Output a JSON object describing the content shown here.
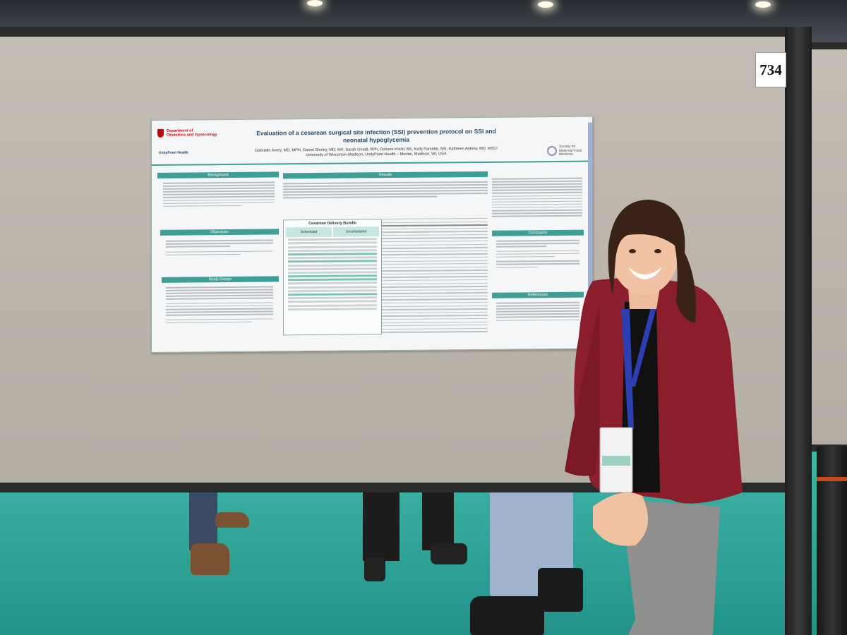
{
  "scene": {
    "description": "Person standing beside a research poster at a conference booth"
  },
  "booth": {
    "number": "734"
  },
  "poster": {
    "title_line1": "Evaluation of a cesarean surgical site infection (SSI) prevention protocol on SSI and",
    "title_line2": "neonatal hypoglycemia",
    "authors": "Gabrielle Avery, MD, MPH, Daniel Shirley, MD, MS, Sarah Gnadt, RPh, Dolores Krickl, BS, Kelly Pamette, MS, Kathleen Antony, MD, MSCI",
    "affiliation": "University of Wisconsin-Madison, UnityPoint Health – Meriter, Madison, WI, USA",
    "dept_line1": "Department of",
    "dept_line2": "Obstetrics and Gynecology",
    "unitypoint": "UnityPoint Health",
    "smfm_line1": "Society for",
    "smfm_line2": "Maternal·Fetal",
    "smfm_line3": "Medicine",
    "sections": {
      "background": "Background",
      "objectives": "Objectives",
      "study_design": "Study Design",
      "results": "Results",
      "conclusion": "Conclusion",
      "references": "References"
    },
    "flow": {
      "title": "Cesarean Delivery Bundle",
      "scheduled": "Scheduled",
      "unscheduled": "Unscheduled"
    }
  },
  "colors": {
    "teal": "#3f9e95",
    "blazer": "#8b1e2b",
    "carpet": "#2ba397"
  }
}
